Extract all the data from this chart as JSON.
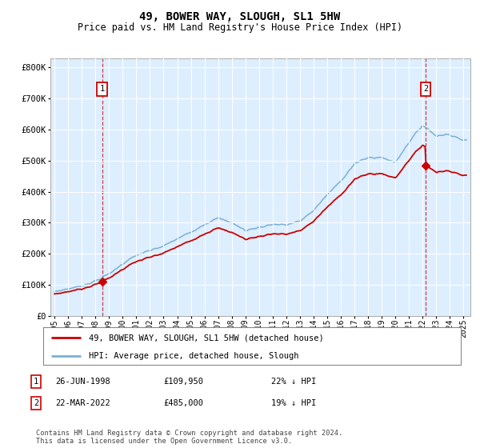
{
  "title": "49, BOWER WAY, SLOUGH, SL1 5HW",
  "subtitle": "Price paid vs. HM Land Registry's House Price Index (HPI)",
  "ylim": [
    0,
    830000
  ],
  "yticks": [
    0,
    100000,
    200000,
    300000,
    400000,
    500000,
    600000,
    700000,
    800000
  ],
  "ytick_labels": [
    "£0",
    "£100K",
    "£200K",
    "£300K",
    "£400K",
    "£500K",
    "£600K",
    "£700K",
    "£800K"
  ],
  "xlim_start": 1994.7,
  "xlim_end": 2025.5,
  "xticks": [
    1995,
    1996,
    1997,
    1998,
    1999,
    2000,
    2001,
    2002,
    2003,
    2004,
    2005,
    2006,
    2007,
    2008,
    2009,
    2010,
    2011,
    2012,
    2013,
    2014,
    2015,
    2016,
    2017,
    2018,
    2019,
    2020,
    2021,
    2022,
    2023,
    2024,
    2025
  ],
  "sale1_x": 1998.487,
  "sale1_y": 109950,
  "sale2_x": 2022.22,
  "sale2_y": 485000,
  "red_line_color": "#cc0000",
  "blue_line_color": "#7ab0d4",
  "plot_bg": "#ddeeff",
  "legend_label_red": "49, BOWER WAY, SLOUGH, SL1 5HW (detached house)",
  "legend_label_blue": "HPI: Average price, detached house, Slough",
  "table_row1": [
    "1",
    "26-JUN-1998",
    "£109,950",
    "22% ↓ HPI"
  ],
  "table_row2": [
    "2",
    "22-MAR-2022",
    "£485,000",
    "19% ↓ HPI"
  ],
  "footer": "Contains HM Land Registry data © Crown copyright and database right 2024.\nThis data is licensed under the Open Government Licence v3.0.",
  "title_fontsize": 10,
  "subtitle_fontsize": 8.5,
  "hpi_key_years": [
    1995,
    1996,
    1997,
    1998,
    1999,
    2000,
    2001,
    2002,
    2003,
    2004,
    2005,
    2006,
    2007,
    2008,
    2009,
    2010,
    2011,
    2012,
    2013,
    2014,
    2015,
    2016,
    2017,
    2018,
    2019,
    2020,
    2021,
    2022,
    2023,
    2024,
    2025
  ],
  "hpi_key_vals": [
    78000,
    87000,
    97000,
    112000,
    135000,
    168000,
    195000,
    210000,
    225000,
    248000,
    270000,
    295000,
    315000,
    300000,
    275000,
    285000,
    295000,
    293000,
    305000,
    340000,
    390000,
    435000,
    490000,
    510000,
    510000,
    495000,
    560000,
    615000,
    580000,
    585000,
    565000
  ]
}
